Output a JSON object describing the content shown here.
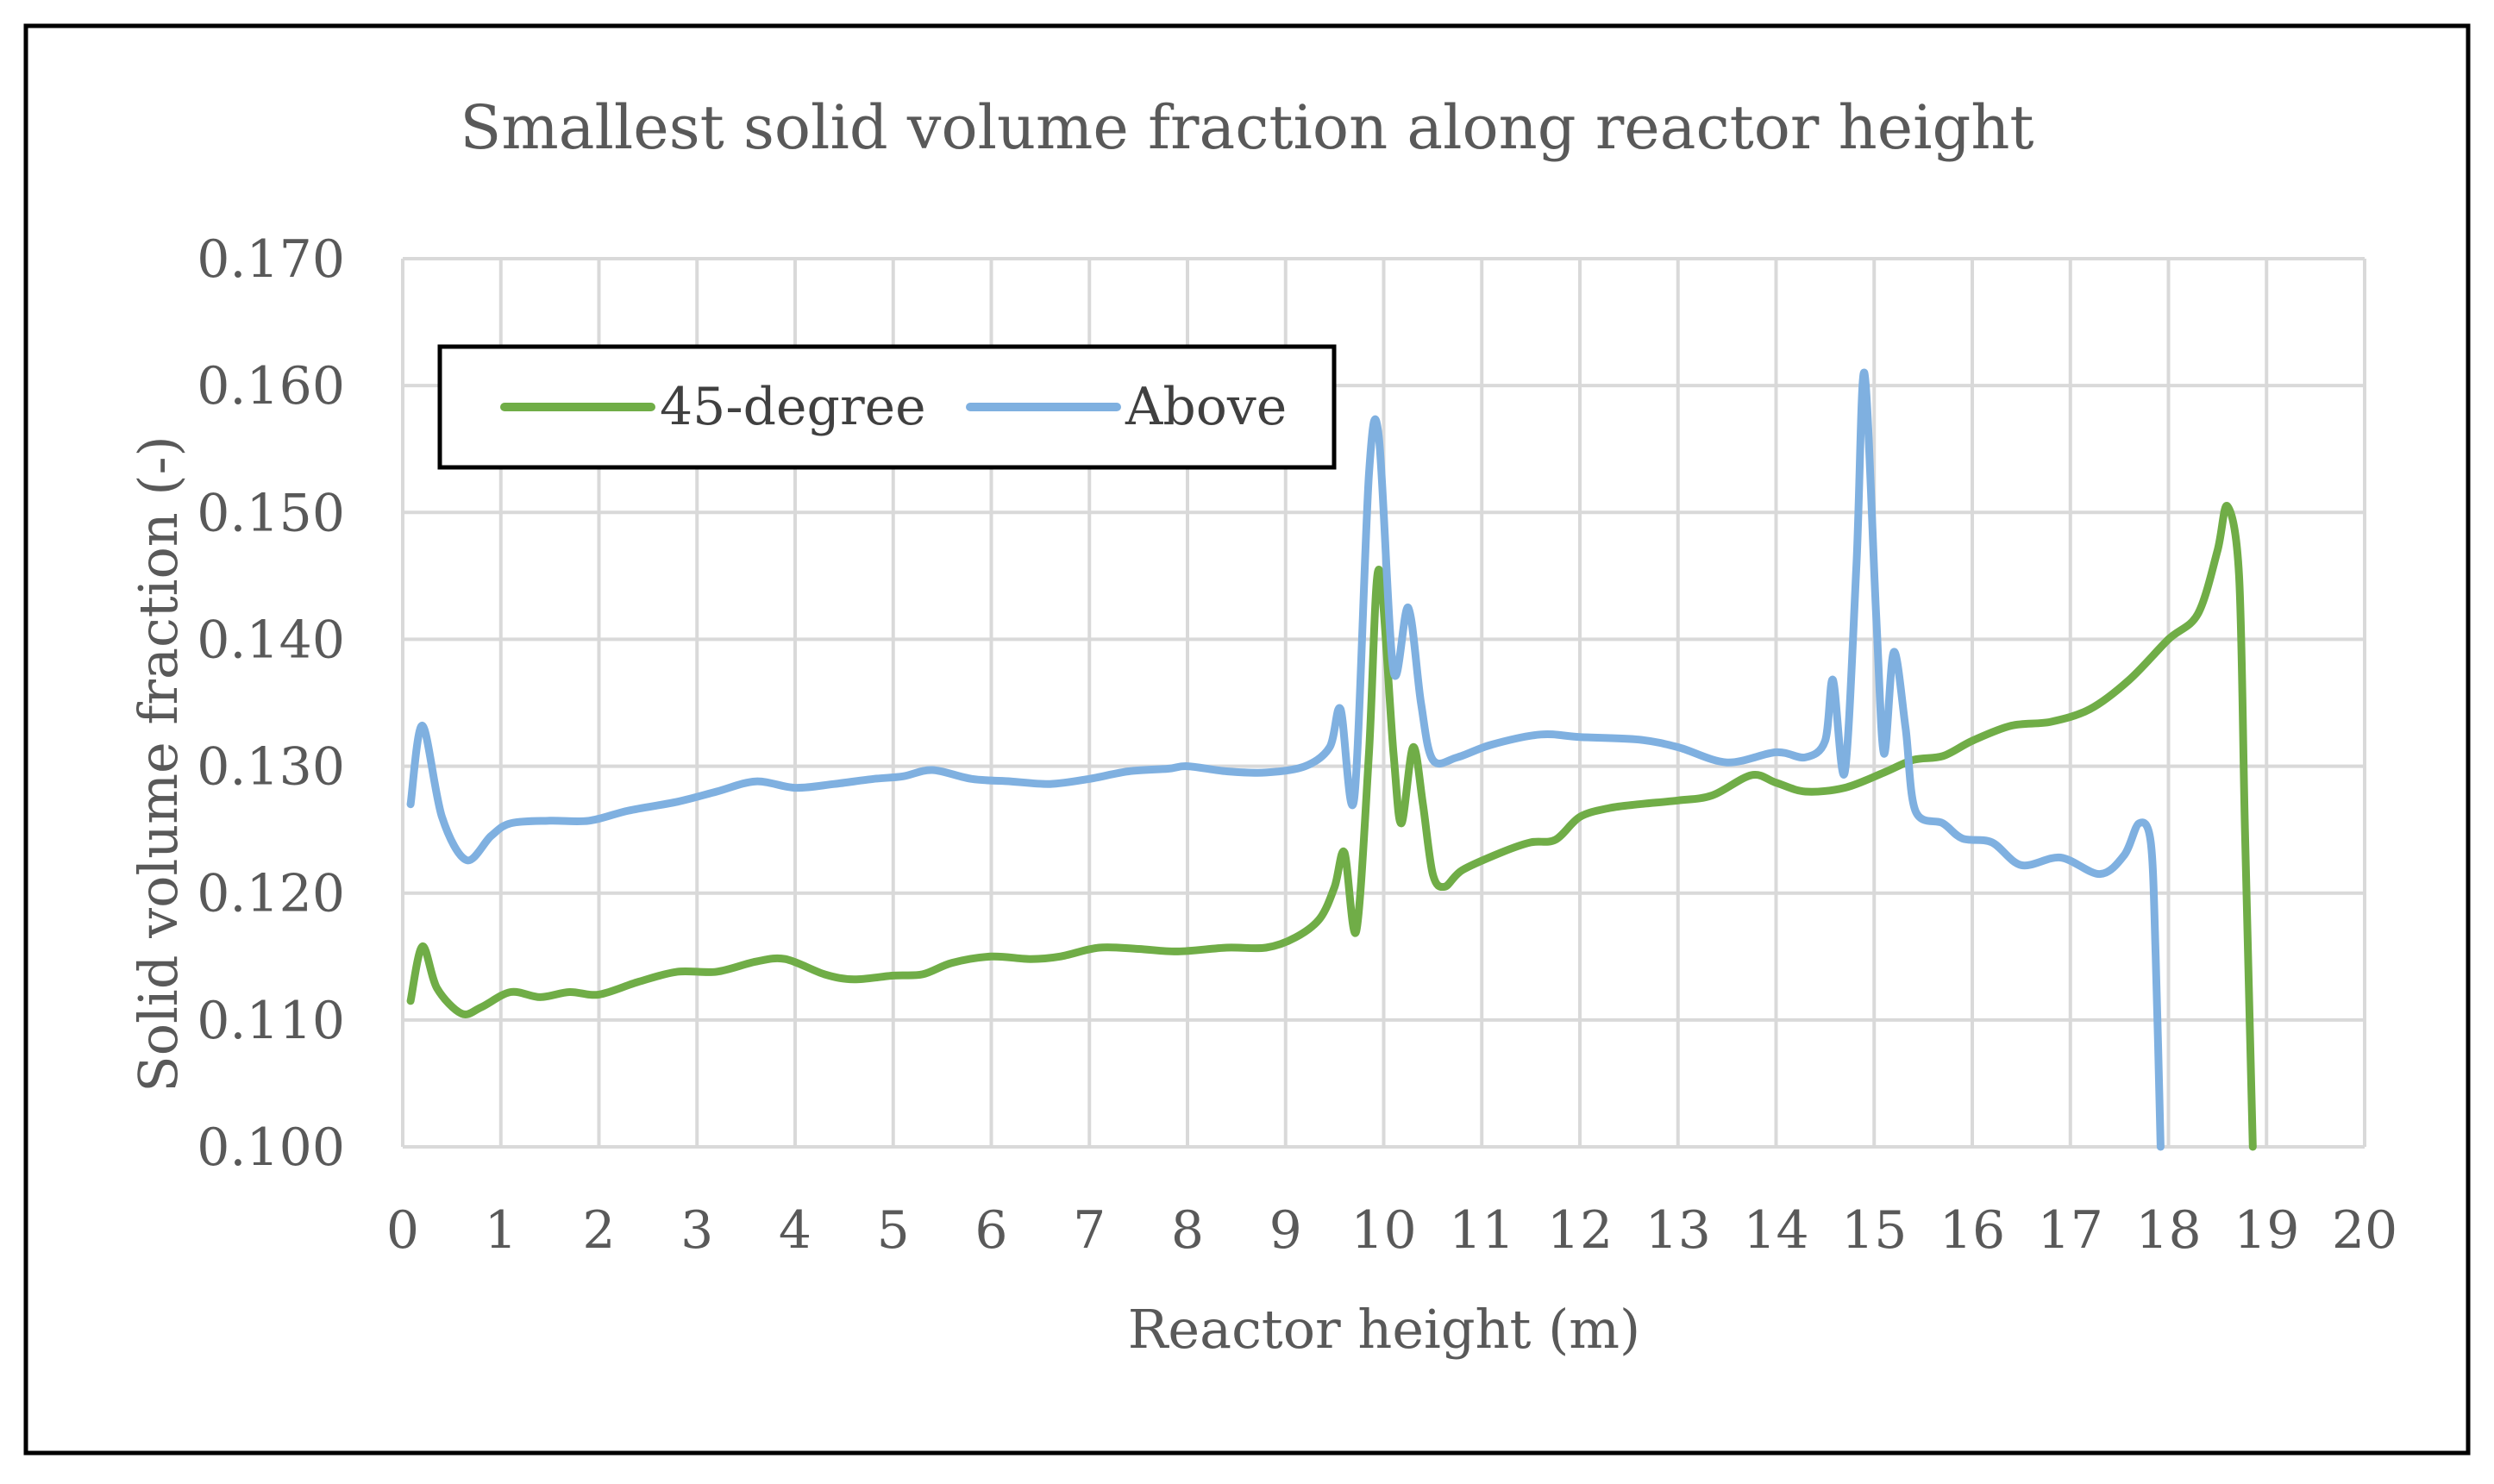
{
  "chart_data": {
    "type": "line",
    "title": "Smallest solid volume fraction along reactor height",
    "xlabel": "Reactor height (m)",
    "ylabel": "Solid volume fraction (-)",
    "xlim": [
      0,
      20
    ],
    "ylim": [
      0.1,
      0.17
    ],
    "x_ticks": [
      "0",
      "1",
      "2",
      "3",
      "4",
      "5",
      "6",
      "7",
      "8",
      "9",
      "10",
      "11",
      "12",
      "13",
      "14",
      "15",
      "16",
      "17",
      "18",
      "19",
      "20"
    ],
    "y_ticks": [
      "0.100",
      "0.110",
      "0.120",
      "0.130",
      "0.140",
      "0.150",
      "0.160",
      "0.170"
    ],
    "grid": true,
    "legend_position": "top-left",
    "series": [
      {
        "name": "45-degree",
        "color": "#70AD47",
        "points": [
          [
            0.08,
            0.1115
          ],
          [
            0.2,
            0.1158
          ],
          [
            0.35,
            0.1125
          ],
          [
            0.6,
            0.1105
          ],
          [
            0.8,
            0.111
          ],
          [
            1.1,
            0.1122
          ],
          [
            1.4,
            0.1118
          ],
          [
            1.7,
            0.1122
          ],
          [
            2.0,
            0.112
          ],
          [
            2.4,
            0.113
          ],
          [
            2.8,
            0.1138
          ],
          [
            3.2,
            0.1138
          ],
          [
            3.6,
            0.1146
          ],
          [
            3.9,
            0.1148
          ],
          [
            4.3,
            0.1136
          ],
          [
            4.6,
            0.1132
          ],
          [
            5.0,
            0.1135
          ],
          [
            5.3,
            0.1136
          ],
          [
            5.6,
            0.1145
          ],
          [
            6.0,
            0.115
          ],
          [
            6.4,
            0.1148
          ],
          [
            6.7,
            0.115
          ],
          [
            7.1,
            0.1157
          ],
          [
            7.5,
            0.1156
          ],
          [
            7.9,
            0.1154
          ],
          [
            8.4,
            0.1157
          ],
          [
            8.8,
            0.1157
          ],
          [
            9.1,
            0.1165
          ],
          [
            9.35,
            0.118
          ],
          [
            9.5,
            0.1205
          ],
          [
            9.6,
            0.1232
          ],
          [
            9.72,
            0.117
          ],
          [
            9.85,
            0.131
          ],
          [
            9.95,
            0.1455
          ],
          [
            10.1,
            0.131
          ],
          [
            10.18,
            0.1255
          ],
          [
            10.3,
            0.1315
          ],
          [
            10.4,
            0.127
          ],
          [
            10.5,
            0.1215
          ],
          [
            10.62,
            0.1205
          ],
          [
            10.8,
            0.1218
          ],
          [
            11.2,
            0.1232
          ],
          [
            11.5,
            0.124
          ],
          [
            11.75,
            0.1242
          ],
          [
            12.0,
            0.126
          ],
          [
            12.3,
            0.1267
          ],
          [
            12.6,
            0.127
          ],
          [
            13.0,
            0.1273
          ],
          [
            13.35,
            0.1277
          ],
          [
            13.75,
            0.1293
          ],
          [
            14.0,
            0.1287
          ],
          [
            14.3,
            0.128
          ],
          [
            14.7,
            0.1283
          ],
          [
            15.1,
            0.1295
          ],
          [
            15.4,
            0.1305
          ],
          [
            15.7,
            0.1308
          ],
          [
            16.0,
            0.132
          ],
          [
            16.4,
            0.1332
          ],
          [
            16.8,
            0.1335
          ],
          [
            17.2,
            0.1345
          ],
          [
            17.6,
            0.1368
          ],
          [
            18.0,
            0.14
          ],
          [
            18.3,
            0.142
          ],
          [
            18.5,
            0.147
          ],
          [
            18.6,
            0.1505
          ],
          [
            18.72,
            0.145
          ],
          [
            18.78,
            0.125
          ],
          [
            18.86,
            0.1
          ]
        ]
      },
      {
        "name": "Above",
        "color": "#7FB0E0",
        "points": [
          [
            0.08,
            0.127
          ],
          [
            0.2,
            0.1332
          ],
          [
            0.4,
            0.126
          ],
          [
            0.65,
            0.1226
          ],
          [
            0.9,
            0.1245
          ],
          [
            1.1,
            0.1255
          ],
          [
            1.5,
            0.1257
          ],
          [
            1.9,
            0.1257
          ],
          [
            2.3,
            0.1265
          ],
          [
            2.8,
            0.1272
          ],
          [
            3.2,
            0.128
          ],
          [
            3.6,
            0.1288
          ],
          [
            4.0,
            0.1283
          ],
          [
            4.4,
            0.1286
          ],
          [
            4.8,
            0.129
          ],
          [
            5.1,
            0.1292
          ],
          [
            5.4,
            0.1297
          ],
          [
            5.8,
            0.129
          ],
          [
            6.2,
            0.1288
          ],
          [
            6.6,
            0.1286
          ],
          [
            7.0,
            0.129
          ],
          [
            7.4,
            0.1296
          ],
          [
            7.8,
            0.1298
          ],
          [
            8.0,
            0.13
          ],
          [
            8.4,
            0.1296
          ],
          [
            8.8,
            0.1295
          ],
          [
            9.2,
            0.13
          ],
          [
            9.45,
            0.1315
          ],
          [
            9.56,
            0.1345
          ],
          [
            9.7,
            0.1275
          ],
          [
            9.85,
            0.153
          ],
          [
            9.95,
            0.156
          ],
          [
            10.1,
            0.1375
          ],
          [
            10.25,
            0.1425
          ],
          [
            10.38,
            0.135
          ],
          [
            10.5,
            0.1305
          ],
          [
            10.75,
            0.1307
          ],
          [
            11.1,
            0.1317
          ],
          [
            11.6,
            0.1325
          ],
          [
            12.0,
            0.1323
          ],
          [
            12.6,
            0.1321
          ],
          [
            13.0,
            0.1315
          ],
          [
            13.5,
            0.1303
          ],
          [
            14.0,
            0.1311
          ],
          [
            14.3,
            0.1307
          ],
          [
            14.5,
            0.132
          ],
          [
            14.58,
            0.1368
          ],
          [
            14.7,
            0.1295
          ],
          [
            14.82,
            0.146
          ],
          [
            14.9,
            0.161
          ],
          [
            15.02,
            0.142
          ],
          [
            15.1,
            0.131
          ],
          [
            15.2,
            0.139
          ],
          [
            15.32,
            0.133
          ],
          [
            15.42,
            0.1265
          ],
          [
            15.7,
            0.1255
          ],
          [
            15.9,
            0.1243
          ],
          [
            16.2,
            0.124
          ],
          [
            16.5,
            0.1222
          ],
          [
            16.9,
            0.1228
          ],
          [
            17.3,
            0.1215
          ],
          [
            17.55,
            0.123
          ],
          [
            17.7,
            0.1255
          ],
          [
            17.82,
            0.124
          ],
          [
            17.87,
            0.115
          ],
          [
            17.92,
            0.1
          ]
        ]
      }
    ]
  }
}
